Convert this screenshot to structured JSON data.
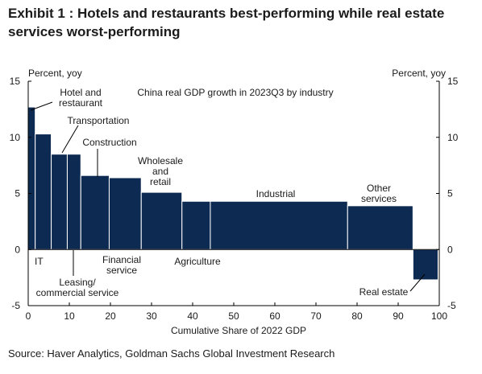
{
  "exhibit": {
    "title": "Exhibit 1 : Hotels and restaurants best-performing while real estate services worst-performing",
    "source": "Source: Haver Analytics, Goldman Sachs Global Investment Research"
  },
  "colors": {
    "bar": "#0d2b52",
    "axis": "#000000",
    "text": "#1a1a1a"
  },
  "chart_data": {
    "type": "bar",
    "subtype": "variable-width bar (Marimekko-style)",
    "title": "China real GDP growth in 2023Q3 by industry",
    "xlabel": "Cumulative Share of 2022 GDP",
    "ylabel_left": "Percent, yoy",
    "ylabel_right": "Percent, yoy",
    "xlim": [
      0,
      100
    ],
    "ylim": [
      -5,
      15
    ],
    "x_ticks": [
      0,
      10,
      20,
      30,
      40,
      50,
      60,
      70,
      80,
      90,
      100
    ],
    "y_ticks": [
      -5,
      0,
      5,
      10,
      15
    ],
    "grid": false,
    "bars": [
      {
        "category": "Hotel and restaurant",
        "x_start": 0.0,
        "x_end": 1.7,
        "value": 12.7
      },
      {
        "category": "IT",
        "x_start": 1.7,
        "x_end": 5.6,
        "value": 10.3
      },
      {
        "category": "Transportation",
        "x_start": 5.6,
        "x_end": 9.5,
        "value": 8.5
      },
      {
        "category": "Leasing/ commercial service",
        "x_start": 9.5,
        "x_end": 12.8,
        "value": 8.5
      },
      {
        "category": "Construction",
        "x_start": 12.8,
        "x_end": 19.7,
        "value": 6.6
      },
      {
        "category": "Financial service",
        "x_start": 19.7,
        "x_end": 27.5,
        "value": 6.4
      },
      {
        "category": "Wholesale and retail",
        "x_start": 27.5,
        "x_end": 37.4,
        "value": 5.1
      },
      {
        "category": "Agriculture",
        "x_start": 37.4,
        "x_end": 44.3,
        "value": 4.3
      },
      {
        "category": "Industrial",
        "x_start": 44.3,
        "x_end": 77.7,
        "value": 4.3
      },
      {
        "category": "Other services",
        "x_start": 77.7,
        "x_end": 93.6,
        "value": 3.9
      },
      {
        "category": "Real estate",
        "x_start": 93.6,
        "x_end": 99.7,
        "value": -2.7
      }
    ],
    "annotations": [
      {
        "lines": [
          "Hotel and",
          "restaurant"
        ]
      },
      {
        "lines": [
          "IT"
        ]
      },
      {
        "lines": [
          "Transportation"
        ]
      },
      {
        "lines": [
          "Leasing/",
          "commercial service"
        ]
      },
      {
        "lines": [
          "Construction"
        ]
      },
      {
        "lines": [
          "Financial",
          "service"
        ]
      },
      {
        "lines": [
          "Wholesale",
          "and",
          "retail"
        ]
      },
      {
        "lines": [
          "Agriculture"
        ]
      },
      {
        "lines": [
          "Industrial"
        ]
      },
      {
        "lines": [
          "Other",
          "services"
        ]
      },
      {
        "lines": [
          "Real estate"
        ]
      }
    ]
  }
}
